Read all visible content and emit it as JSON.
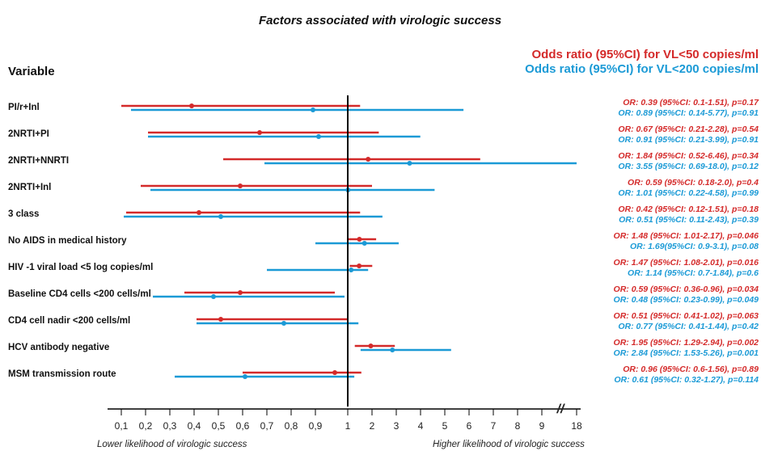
{
  "chart_data": {
    "type": "forest",
    "title": "Factors associated with virologic success",
    "column_header": "Variable",
    "legend": [
      {
        "label": "Odds ratio (95%CI) for  VL<50 copies/ml",
        "color": "#d42a2a"
      },
      {
        "label": "Odds ratio (95%CI) for  VL<200 copies/ml",
        "color": "#1b9ad6"
      }
    ],
    "x_ticks": [
      "0,1",
      "0,2",
      "0,3",
      "0,4",
      "0,5",
      "0,6",
      "0,7",
      "0,8",
      "0,9",
      "1",
      "2",
      "3",
      "4",
      "5",
      "6",
      "7",
      "8",
      "9",
      "18"
    ],
    "x_break_symbol": "//",
    "reference_line": 1,
    "xlabel_left": "Lower likelihood of  virologic success",
    "xlabel_right": "Higher likelihood of  virologic success",
    "rows": [
      {
        "variable": "PI/r+Inl",
        "vl50": {
          "or": 0.39,
          "lo": 0.1,
          "hi": 1.51,
          "label": "OR: 0.39 (95%CI: 0.1-1.51), p=0.17"
        },
        "vl200": {
          "or": 0.89,
          "lo": 0.14,
          "hi": 5.77,
          "label": "OR: 0.89 (95%CI: 0.14-5.77), p=0.91"
        }
      },
      {
        "variable": "2NRTI+PI",
        "vl50": {
          "or": 0.67,
          "lo": 0.21,
          "hi": 2.28,
          "label": "OR: 0.67 (95%CI: 0.21-2.28), p=0.54"
        },
        "vl200": {
          "or": 0.91,
          "lo": 0.21,
          "hi": 3.99,
          "label": "OR: 0.91 (95%CI: 0.21-3.99), p=0.91"
        }
      },
      {
        "variable": "2NRTI+NNRTI",
        "vl50": {
          "or": 1.84,
          "lo": 0.52,
          "hi": 6.46,
          "label": "OR: 1.84 (95%CI: 0.52-6.46), p=0.34"
        },
        "vl200": {
          "or": 3.55,
          "lo": 0.69,
          "hi": 18.0,
          "label": "OR: 3.55 (95%CI: 0.69-18.0), p=0.12"
        }
      },
      {
        "variable": "2NRTI+Inl",
        "vl50": {
          "or": 0.59,
          "lo": 0.18,
          "hi": 2.0,
          "label": "OR: 0.59 (95%CI: 0.18-2.0), p=0.4"
        },
        "vl200": {
          "or": 1.01,
          "lo": 0.22,
          "hi": 4.58,
          "label": "OR: 1.01 (95%CI: 0.22-4.58), p=0.99"
        }
      },
      {
        "variable": "3 class",
        "vl50": {
          "or": 0.42,
          "lo": 0.12,
          "hi": 1.51,
          "label": "OR: 0.42 (95%CI: 0.12-1.51), p=0.18"
        },
        "vl200": {
          "or": 0.51,
          "lo": 0.11,
          "hi": 2.43,
          "label": "OR: 0.51 (95%CI: 0.11-2.43), p=0.39"
        }
      },
      {
        "variable": "No AIDS in medical history",
        "vl50": {
          "or": 1.48,
          "lo": 1.01,
          "hi": 2.17,
          "label": "OR: 1.48 (95%CI: 1.01-2.17), p=0.046"
        },
        "vl200": {
          "or": 1.69,
          "lo": 0.9,
          "hi": 3.1,
          "label": "OR: 1.69(95%CI: 0.9-3.1), p=0.08"
        }
      },
      {
        "variable": "HIV -1 viral load <5 log copies/ml",
        "vl50": {
          "or": 1.47,
          "lo": 1.08,
          "hi": 2.01,
          "label": "OR: 1.47 (95%CI: 1.08-2.01), p=0.016"
        },
        "vl200": {
          "or": 1.14,
          "lo": 0.7,
          "hi": 1.84,
          "label": "OR: 1.14 (95%CI: 0.7-1.84), p=0.6"
        }
      },
      {
        "variable": "Baseline CD4 cells  <200 cells/ml",
        "vl50": {
          "or": 0.59,
          "lo": 0.36,
          "hi": 0.96,
          "label": "OR: 0.59 (95%CI: 0.36-0.96), p=0.034"
        },
        "vl200": {
          "or": 0.48,
          "lo": 0.23,
          "hi": 0.99,
          "label": "OR: 0.48 (95%CI: 0.23-0.99), p=0.049"
        }
      },
      {
        "variable": "CD4 cell nadir  <200 cells/ml",
        "vl50": {
          "or": 0.51,
          "lo": 0.41,
          "hi": 1.02,
          "label": "OR: 0.51 (95%CI: 0.41-1.02), p=0.063"
        },
        "vl200": {
          "or": 0.77,
          "lo": 0.41,
          "hi": 1.44,
          "label": "OR:  0.77 (95%CI: 0.41-1.44), p=0.42"
        }
      },
      {
        "variable": "HCV antibody negative",
        "vl50": {
          "or": 1.95,
          "lo": 1.29,
          "hi": 2.94,
          "label": "OR: 1.95 (95%CI: 1.29-2.94), p=0.002"
        },
        "vl200": {
          "or": 2.84,
          "lo": 1.53,
          "hi": 5.26,
          "label": "OR: 2.84 (95%CI: 1.53-5.26), p=0.001"
        }
      },
      {
        "variable": "MSM transmission route",
        "vl50": {
          "or": 0.96,
          "lo": 0.6,
          "hi": 1.56,
          "label": "OR: 0.96 (95%CI: 0.6-1.56), p=0.89"
        },
        "vl200": {
          "or": 0.61,
          "lo": 0.32,
          "hi": 1.27,
          "label": "OR: 0.61 (95%CI: 0.32-1.27), p=0.114"
        }
      }
    ]
  }
}
